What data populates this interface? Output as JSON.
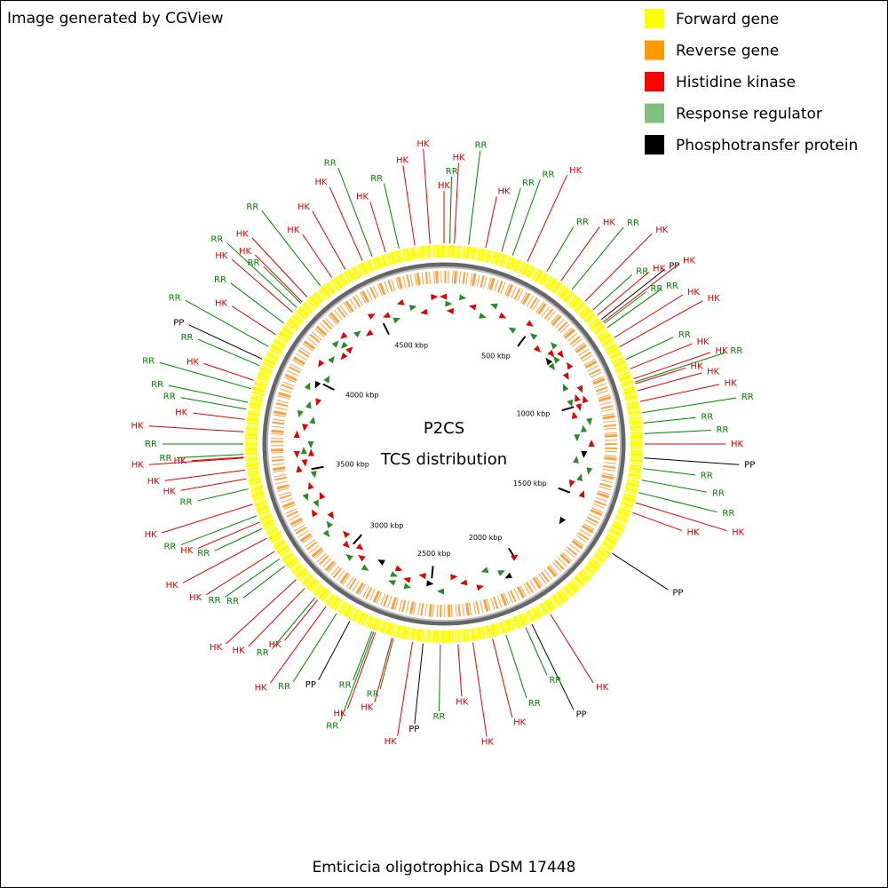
{
  "header": {
    "credit": "Image generated by CGView",
    "center_title": "P2CS",
    "center_subtitle": "TCS distribution",
    "caption": "Emticicia oligotrophica DSM 17448"
  },
  "legend": [
    {
      "name": "Forward gene",
      "color": "#ffff00"
    },
    {
      "name": "Reverse gene",
      "color": "#ff9900"
    },
    {
      "name": "Histidine kinase",
      "color": "#ff0000"
    },
    {
      "name": "Response regulator",
      "color": "#80c080"
    },
    {
      "name": "Phosphotransfer protein",
      "color": "#000000"
    }
  ],
  "map": {
    "xlim": [
      0,
      4860
    ],
    "xticks": [
      {
        "value": 500,
        "label": "500 kbp"
      },
      {
        "value": 1000,
        "label": "1000 kbp"
      },
      {
        "value": 1500,
        "label": "1500 kbp"
      },
      {
        "value": 2000,
        "label": "2000 kbp"
      },
      {
        "value": 2500,
        "label": "2500 kbp"
      },
      {
        "value": 3000,
        "label": "3000 kbp"
      },
      {
        "value": 3500,
        "label": "3500 kbp"
      },
      {
        "value": 4000,
        "label": "4000 kbp"
      },
      {
        "value": 4500,
        "label": "4500 kbp"
      }
    ],
    "label_colors": {
      "HK": "#e00000",
      "RR": "#008000",
      "PP": "#000000"
    },
    "features": [
      {
        "label": "HK",
        "kbp": 0
      },
      {
        "label": "RR",
        "kbp": 22
      },
      {
        "label": "HK",
        "kbp": 40
      },
      {
        "label": "RR",
        "kbp": 95
      },
      {
        "label": "HK",
        "kbp": 162
      },
      {
        "label": "RR",
        "kbp": 225
      },
      {
        "label": "RR",
        "kbp": 270
      },
      {
        "label": "HK",
        "kbp": 332
      },
      {
        "label": "RR",
        "kbp": 416
      },
      {
        "label": "HK",
        "kbp": 481
      },
      {
        "label": "RR",
        "kbp": 535
      },
      {
        "label": "HK",
        "kbp": 603
      },
      {
        "label": "RR",
        "kbp": 648
      },
      {
        "label": "HK",
        "kbp": 675
      },
      {
        "label": "PP",
        "kbp": 697
      },
      {
        "label": "HK",
        "kbp": 709
      },
      {
        "label": "RR",
        "kbp": 716
      },
      {
        "label": "RR",
        "kbp": 736
      },
      {
        "label": "HK",
        "kbp": 783
      },
      {
        "label": "HK",
        "kbp": 824
      },
      {
        "label": "RR",
        "kbp": 878
      },
      {
        "label": "HK",
        "kbp": 918
      },
      {
        "label": "HK",
        "kbp": 959
      },
      {
        "label": "RR",
        "kbp": 972
      },
      {
        "label": "HK",
        "kbp": 979
      },
      {
        "label": "HK",
        "kbp": 1007
      },
      {
        "label": "HK",
        "kbp": 1050
      },
      {
        "label": "RR",
        "kbp": 1094
      },
      {
        "label": "RR",
        "kbp": 1134
      },
      {
        "label": "RR",
        "kbp": 1175
      },
      {
        "label": "HK",
        "kbp": 1215
      },
      {
        "label": "PP",
        "kbp": 1269
      },
      {
        "label": "RR",
        "kbp": 1310
      },
      {
        "label": "RR",
        "kbp": 1355
      },
      {
        "label": "RR",
        "kbp": 1404
      },
      {
        "label": "HK",
        "kbp": 1445
      },
      {
        "label": "HK",
        "kbp": 1485
      },
      {
        "label": "PP",
        "kbp": 1661
      },
      {
        "label": "HK",
        "kbp": 1998
      },
      {
        "label": "PP",
        "kbp": 2079
      },
      {
        "label": "RR",
        "kbp": 2106
      },
      {
        "label": "RR",
        "kbp": 2187
      },
      {
        "label": "HK",
        "kbp": 2241
      },
      {
        "label": "HK",
        "kbp": 2318
      },
      {
        "label": "HK",
        "kbp": 2376
      },
      {
        "label": "RR",
        "kbp": 2444
      },
      {
        "label": "PP",
        "kbp": 2511
      },
      {
        "label": "HK",
        "kbp": 2552
      },
      {
        "label": "RR",
        "kbp": 2627
      },
      {
        "label": "HK",
        "kbp": 2633
      },
      {
        "label": "HK",
        "kbp": 2700
      },
      {
        "label": "RR",
        "kbp": 2707
      },
      {
        "label": "RR",
        "kbp": 2714
      },
      {
        "label": "PP",
        "kbp": 2808
      },
      {
        "label": "RR",
        "kbp": 2867
      },
      {
        "label": "HK",
        "kbp": 2916
      },
      {
        "label": "HK",
        "kbp": 2957
      },
      {
        "label": "RR",
        "kbp": 2970
      },
      {
        "label": "HK",
        "kbp": 3024
      },
      {
        "label": "HK",
        "kbp": 3071
      },
      {
        "label": "RR",
        "kbp": 3139
      },
      {
        "label": "RR",
        "kbp": 3173
      },
      {
        "label": "HK",
        "kbp": 3208
      },
      {
        "label": "HK",
        "kbp": 3267
      },
      {
        "label": "RR",
        "kbp": 3308
      },
      {
        "label": "HK",
        "kbp": 3335
      },
      {
        "label": "RR",
        "kbp": 3362
      },
      {
        "label": "HK",
        "kbp": 3409
      },
      {
        "label": "RR",
        "kbp": 3470
      },
      {
        "label": "HK",
        "kbp": 3510
      },
      {
        "label": "HK",
        "kbp": 3544
      },
      {
        "label": "HK",
        "kbp": 3591
      },
      {
        "label": "HK",
        "kbp": 3594
      },
      {
        "label": "RR",
        "kbp": 3605
      },
      {
        "label": "RR",
        "kbp": 3645
      },
      {
        "label": "HK",
        "kbp": 3692
      },
      {
        "label": "HK",
        "kbp": 3740
      },
      {
        "label": "RR",
        "kbp": 3780
      },
      {
        "label": "RR",
        "kbp": 3807
      },
      {
        "label": "RR",
        "kbp": 3861
      },
      {
        "label": "HK",
        "kbp": 3895
      },
      {
        "label": "RR",
        "kbp": 3956
      },
      {
        "label": "PP",
        "kbp": 3983
      },
      {
        "label": "RR",
        "kbp": 4037
      },
      {
        "label": "HK",
        "kbp": 4091
      },
      {
        "label": "RR",
        "kbp": 4145
      },
      {
        "label": "HK",
        "kbp": 4199
      },
      {
        "label": "RR",
        "kbp": 4223
      },
      {
        "label": "RR",
        "kbp": 4246
      },
      {
        "label": "HK",
        "kbp": 4253
      },
      {
        "label": "HK",
        "kbp": 4280
      },
      {
        "label": "RR",
        "kbp": 4347
      },
      {
        "label": "HK",
        "kbp": 4401
      },
      {
        "label": "HK",
        "kbp": 4462
      },
      {
        "label": "HK",
        "kbp": 4536
      },
      {
        "label": "RR",
        "kbp": 4577
      },
      {
        "label": "HK",
        "kbp": 4631
      },
      {
        "label": "RR",
        "kbp": 4685
      },
      {
        "label": "HK",
        "kbp": 4747
      },
      {
        "label": "HK",
        "kbp": 4806
      }
    ]
  }
}
